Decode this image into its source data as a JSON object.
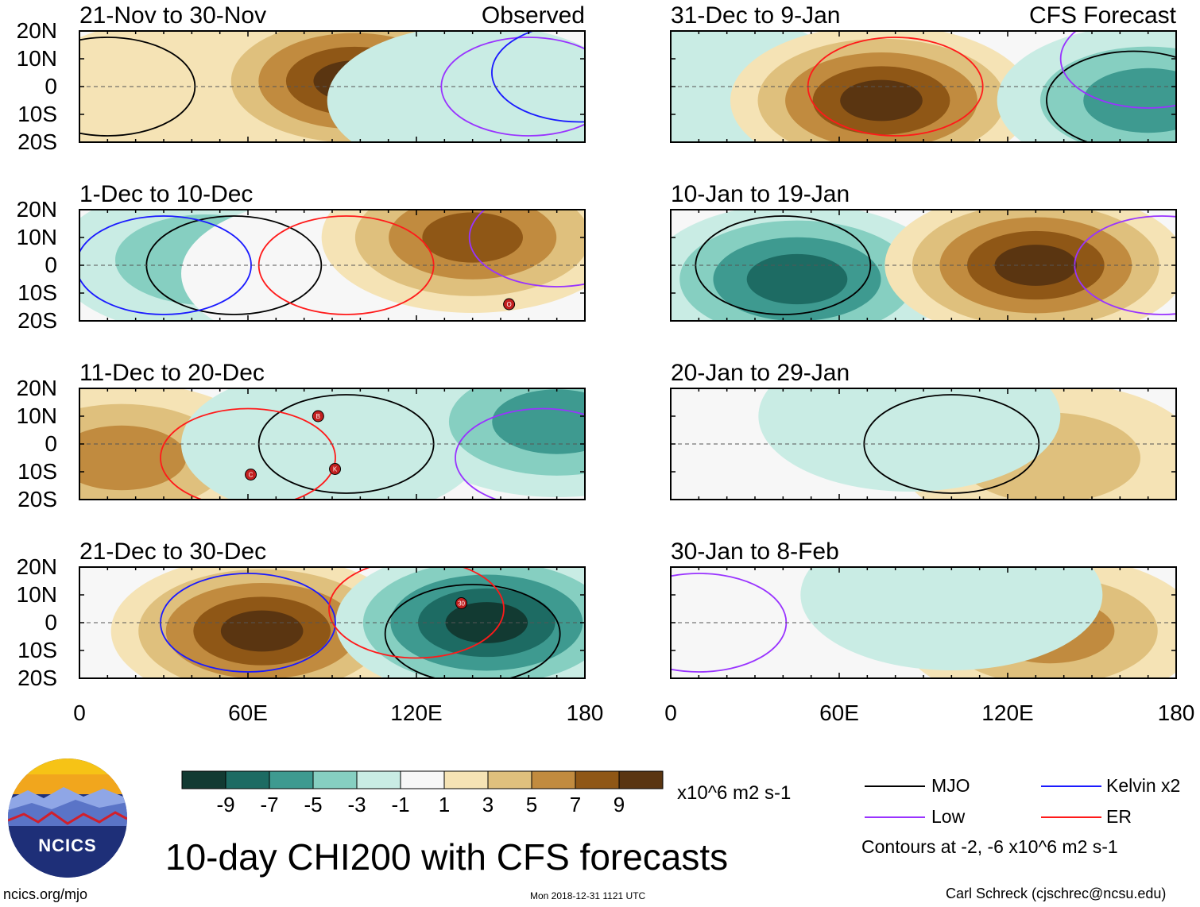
{
  "chart_data": [
    {
      "type": "heatmap",
      "title": "21-Nov to 30-Nov",
      "tag": "Observed",
      "fill_anomalies": [
        {
          "lon": 35,
          "lat": -3,
          "value": 3
        },
        {
          "lon": 98,
          "lat": 2,
          "value": 10
        },
        {
          "lon": 142,
          "lat": -5,
          "value": -3
        }
      ],
      "contours": [
        {
          "type": "MJO",
          "lon": 10,
          "lat": 0
        },
        {
          "type": "Low",
          "lon": 160,
          "lat": 0
        },
        {
          "type": "Kelvin x2",
          "lon": 178,
          "lat": 5
        }
      ],
      "storms": []
    },
    {
      "type": "heatmap",
      "title": "1-Dec to 10-Dec",
      "tag": "",
      "fill_anomalies": [
        {
          "lon": 45,
          "lat": 2,
          "value": -4
        },
        {
          "lon": 90,
          "lat": -3,
          "value": -1
        },
        {
          "lon": 140,
          "lat": 10,
          "value": 9
        }
      ],
      "contours": [
        {
          "type": "MJO",
          "lon": 55,
          "lat": 0
        },
        {
          "type": "ER",
          "lon": 95,
          "lat": 0
        },
        {
          "type": "Kelvin x2",
          "lon": 30,
          "lat": 0
        },
        {
          "type": "Low",
          "lon": 170,
          "lat": 10
        }
      ],
      "storms": [
        {
          "label": "O",
          "lon": 153,
          "lat": -14
        }
      ]
    },
    {
      "type": "heatmap",
      "title": "11-Dec to 20-Dec",
      "tag": "",
      "fill_anomalies": [
        {
          "lon": 15,
          "lat": -5,
          "value": 6
        },
        {
          "lon": 90,
          "lat": 0,
          "value": -3
        },
        {
          "lon": 170,
          "lat": 8,
          "value": -6
        }
      ],
      "contours": [
        {
          "type": "MJO",
          "lon": 95,
          "lat": 0
        },
        {
          "type": "ER",
          "lon": 60,
          "lat": -5
        },
        {
          "type": "Low",
          "lon": 165,
          "lat": -5
        }
      ],
      "storms": [
        {
          "label": "B",
          "lon": 85,
          "lat": 10
        },
        {
          "label": "C",
          "lon": 61,
          "lat": -11
        },
        {
          "label": "K",
          "lon": 91,
          "lat": -9
        }
      ]
    },
    {
      "type": "heatmap",
      "title": "21-Dec to 30-Dec",
      "tag": "",
      "fill_anomalies": [
        {
          "lon": 65,
          "lat": -3,
          "value": 10
        },
        {
          "lon": 145,
          "lat": 0,
          "value": -10
        }
      ],
      "contours": [
        {
          "type": "Kelvin x2",
          "lon": 60,
          "lat": 0
        },
        {
          "type": "MJO",
          "lon": 140,
          "lat": -4
        },
        {
          "type": "ER",
          "lon": 120,
          "lat": 5
        }
      ],
      "storms": [
        {
          "label": "30",
          "lon": 136,
          "lat": 7
        }
      ]
    },
    {
      "type": "heatmap",
      "title": "31-Dec to 9-Jan",
      "tag": "CFS Forecast",
      "fill_anomalies": [
        {
          "lon": 10,
          "lat": 0,
          "value": -3
        },
        {
          "lon": 75,
          "lat": -5,
          "value": 10
        },
        {
          "lon": 170,
          "lat": -5,
          "value": -6
        }
      ],
      "contours": [
        {
          "type": "ER",
          "lon": 80,
          "lat": 0
        },
        {
          "type": "MJO",
          "lon": 165,
          "lat": -5
        },
        {
          "type": "Low",
          "lon": 170,
          "lat": 10
        }
      ],
      "storms": []
    },
    {
      "type": "heatmap",
      "title": "10-Jan to 19-Jan",
      "tag": "",
      "fill_anomalies": [
        {
          "lon": 45,
          "lat": -5,
          "value": -8
        },
        {
          "lon": 130,
          "lat": 0,
          "value": 10
        }
      ],
      "contours": [
        {
          "type": "MJO",
          "lon": 40,
          "lat": 0
        },
        {
          "type": "Low",
          "lon": 175,
          "lat": 0
        }
      ],
      "storms": []
    },
    {
      "type": "heatmap",
      "title": "20-Jan to 29-Jan",
      "tag": "",
      "fill_anomalies": [
        {
          "lon": 135,
          "lat": -5,
          "value": 4
        },
        {
          "lon": 85,
          "lat": 10,
          "value": -2
        }
      ],
      "contours": [
        {
          "type": "MJO",
          "lon": 100,
          "lat": 0
        }
      ],
      "storms": []
    },
    {
      "type": "heatmap",
      "title": "30-Jan to 8-Feb",
      "tag": "",
      "fill_anomalies": [
        {
          "lon": 135,
          "lat": -3,
          "value": 6
        },
        {
          "lon": 100,
          "lat": 10,
          "value": -2
        }
      ],
      "contours": [
        {
          "type": "Low",
          "lon": 10,
          "lat": 0
        }
      ],
      "storms": []
    }
  ],
  "axes": {
    "y_ticks": [
      "20N",
      "10N",
      "0",
      "10S",
      "20S"
    ],
    "x_ticks": [
      "0",
      "60E",
      "120E",
      "180"
    ],
    "lat_range": [
      -20,
      20
    ],
    "lon_range": [
      0,
      180
    ]
  },
  "colorbar": {
    "colors": [
      "#123a32",
      "#1d6b63",
      "#3e9a90",
      "#86cfc1",
      "#c9ece4",
      "#f7f7f7",
      "#f5e3b5",
      "#dfc07d",
      "#c18b3f",
      "#8f5716",
      "#5a3511"
    ],
    "labels": [
      "-9",
      "-7",
      "-5",
      "-3",
      "-1",
      "1",
      "3",
      "5",
      "7",
      "9"
    ],
    "units": "x10^6 m2 s-1"
  },
  "contour_colors": {
    "MJO": "#000000",
    "Kelvin x2": "#1a1aff",
    "Low": "#9933ff",
    "ER": "#ff1a1a"
  },
  "legend": {
    "items": [
      {
        "label": "MJO",
        "color": "#000000"
      },
      {
        "label": "Kelvin x2",
        "color": "#1a1aff"
      },
      {
        "label": "Low",
        "color": "#9933ff"
      },
      {
        "label": "ER",
        "color": "#ff1a1a"
      }
    ],
    "note": "Contours at -2, -6 x10^6 m2 s-1"
  },
  "main_title": "10-day CHI200 with CFS forecasts",
  "logo": {
    "text": "NCICS"
  },
  "footer": {
    "website": "ncics.org/mjo",
    "timestamp": "Mon 2018-12-31 1121 UTC",
    "credit": "Carl Schreck (cjschrec@ncsu.edu)"
  }
}
